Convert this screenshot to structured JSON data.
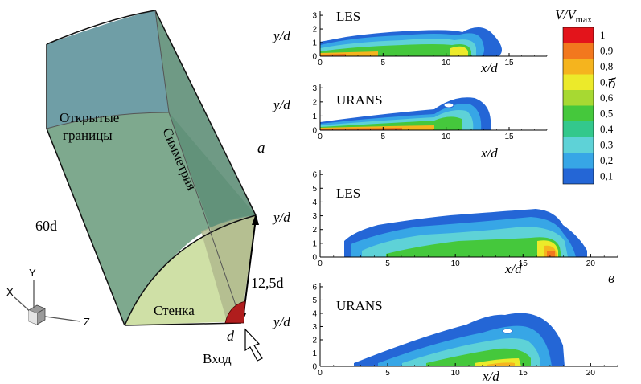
{
  "domain": {
    "labels": {
      "open_bounds_line1": "Открытые",
      "open_bounds_line2": "границы",
      "symmetry": "Симметрия",
      "wall": "Стенка",
      "inlet": "Вход",
      "length": "60d",
      "radius": "12,5d",
      "diameter": "d",
      "panel_a": "a"
    },
    "axes": {
      "x": "X",
      "y": "Y",
      "z": "Z"
    }
  },
  "legend": {
    "title": "V/V",
    "title_sub": "max",
    "levels": [
      "1",
      "0,9",
      "0,8",
      "0,7",
      "0,6",
      "0,5",
      "0,4",
      "0,3",
      "0,2",
      "0,1"
    ],
    "colors": [
      "#e3141b",
      "#f2781e",
      "#f5b41e",
      "#ecea2a",
      "#a7d932",
      "#45c83c",
      "#33c88c",
      "#5ed2d7",
      "#37a6e6",
      "#2466d6"
    ]
  },
  "panels": {
    "b": "б",
    "v": "в"
  },
  "chart_data": [
    {
      "type": "heatmap",
      "label": "LES",
      "ylabel": "y/d",
      "xlabel": "x/d",
      "xticks": [
        "0",
        "5",
        "10",
        "15"
      ],
      "yticks": [
        "0",
        "1",
        "2",
        "3"
      ],
      "xlim": [
        0,
        18
      ],
      "ylim": [
        0,
        3.3
      ]
    },
    {
      "type": "heatmap",
      "label": "URANS",
      "ylabel": "y/d",
      "xlabel": "x/d",
      "xticks": [
        "0",
        "5",
        "10",
        "15"
      ],
      "yticks": [
        "0",
        "1",
        "2",
        "3"
      ],
      "xlim": [
        0,
        18
      ],
      "ylim": [
        0,
        3.3
      ]
    },
    {
      "type": "heatmap",
      "label": "LES",
      "ylabel": "y/d",
      "xlabel": "x/d",
      "xticks": [
        "0",
        "5",
        "10",
        "15",
        "20"
      ],
      "yticks": [
        "0",
        "1",
        "2",
        "3",
        "4",
        "5",
        "6"
      ],
      "xlim": [
        0,
        22
      ],
      "ylim": [
        0,
        6.3
      ]
    },
    {
      "type": "heatmap",
      "label": "URANS",
      "ylabel": "y/d",
      "xlabel": "x/d",
      "xticks": [
        "0",
        "5",
        "10",
        "15",
        "20"
      ],
      "yticks": [
        "0",
        "1",
        "2",
        "3",
        "4",
        "5",
        "6"
      ],
      "xlim": [
        0,
        22
      ],
      "ylim": [
        0,
        6.3
      ]
    }
  ]
}
